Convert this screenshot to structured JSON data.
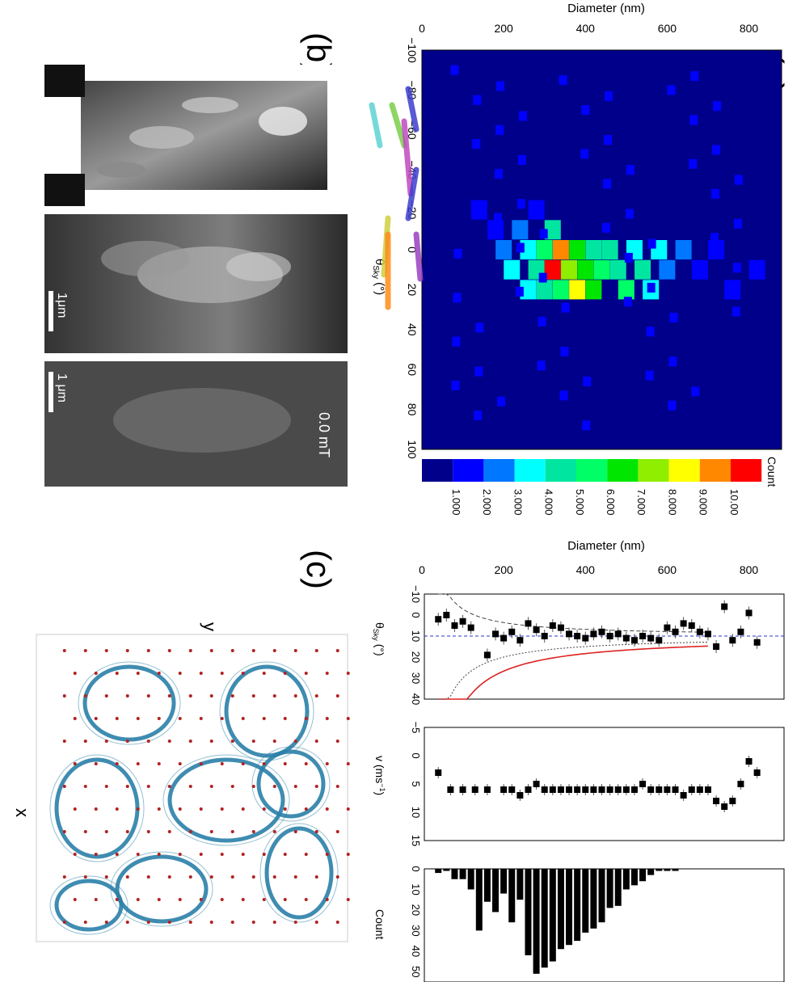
{
  "panels": {
    "a": {
      "label": "(a)"
    },
    "b": {
      "label": "(b)"
    },
    "c": {
      "label": "(c)"
    }
  },
  "heatmap": {
    "xlabel": "Diameter (nm)",
    "ylabel": "θSky (°)",
    "x_ticks": [
      "0",
      "200",
      "400",
      "600",
      "800"
    ],
    "y_ticks": [
      "−100",
      "−80",
      "−60",
      "−40",
      "−20",
      "0",
      "20",
      "40",
      "60",
      "80",
      "100"
    ],
    "colorbar": {
      "title": "Count",
      "labels": [
        "1.000",
        "2.000",
        "3.000",
        "4.000",
        "5.000",
        "6.000",
        "7.000",
        "8.000",
        "9.000",
        "10.00"
      ],
      "colors": [
        "#00008b",
        "#0000ff",
        "#0077ff",
        "#00ffff",
        "#00e6a0",
        "#00ff66",
        "#00e600",
        "#90ee00",
        "#ffff00",
        "#ff8800",
        "#ff0000"
      ]
    }
  },
  "micrographs": {
    "scale_label": "1μm",
    "scale_label_3": "1 μm",
    "field_label": "0.0 mT",
    "track_colors": [
      "#5fd3d3",
      "#7ad04a",
      "#3e3ed0",
      "#c04bc0",
      "#3e3ed0",
      "#d0d040",
      "#ff8c1a",
      "#9a40c0"
    ]
  },
  "simulation": {
    "axis_x": "x",
    "axis_y": "y",
    "line_color": "#2a7fa8",
    "dot_color": "#b22222"
  },
  "chart_data": [
    {
      "type": "heatmap",
      "title": "",
      "xlabel": "Diameter (nm)",
      "ylabel": "θSky (°)",
      "xlim": [
        0,
        880
      ],
      "ylim": [
        -100,
        100
      ],
      "cells": [
        {
          "d": 140,
          "t": -20,
          "c": 1
        },
        {
          "d": 180,
          "t": -10,
          "c": 1
        },
        {
          "d": 200,
          "t": 0,
          "c": 2
        },
        {
          "d": 220,
          "t": 10,
          "c": 3
        },
        {
          "d": 240,
          "t": -10,
          "c": 2
        },
        {
          "d": 260,
          "t": 0,
          "c": 3
        },
        {
          "d": 260,
          "t": 20,
          "c": 3
        },
        {
          "d": 280,
          "t": -20,
          "c": 1
        },
        {
          "d": 280,
          "t": 10,
          "c": 4
        },
        {
          "d": 300,
          "t": 0,
          "c": 5
        },
        {
          "d": 300,
          "t": 20,
          "c": 4
        },
        {
          "d": 320,
          "t": 10,
          "c": 6
        },
        {
          "d": 320,
          "t": -10,
          "c": 4
        },
        {
          "d": 340,
          "t": 0,
          "c": 9
        },
        {
          "d": 340,
          "t": 20,
          "c": 5
        },
        {
          "d": 360,
          "t": 10,
          "c": 7
        },
        {
          "d": 320,
          "t": 10,
          "c": 10
        },
        {
          "d": 380,
          "t": 0,
          "c": 6
        },
        {
          "d": 380,
          "t": 20,
          "c": 8
        },
        {
          "d": 400,
          "t": 10,
          "c": 6
        },
        {
          "d": 420,
          "t": 0,
          "c": 4
        },
        {
          "d": 420,
          "t": 20,
          "c": 6
        },
        {
          "d": 440,
          "t": 10,
          "c": 5
        },
        {
          "d": 460,
          "t": 0,
          "c": 4
        },
        {
          "d": 480,
          "t": 10,
          "c": 4
        },
        {
          "d": 500,
          "t": 20,
          "c": 5
        },
        {
          "d": 520,
          "t": 0,
          "c": 3
        },
        {
          "d": 540,
          "t": 10,
          "c": 4
        },
        {
          "d": 560,
          "t": 20,
          "c": 3
        },
        {
          "d": 580,
          "t": 0,
          "c": 3
        },
        {
          "d": 600,
          "t": 10,
          "c": 2
        },
        {
          "d": 640,
          "t": 0,
          "c": 2
        },
        {
          "d": 680,
          "t": 10,
          "c": 1
        },
        {
          "d": 720,
          "t": 0,
          "c": 1
        },
        {
          "d": 760,
          "t": 20,
          "c": 1
        },
        {
          "d": 820,
          "t": 10,
          "c": 1
        }
      ]
    },
    {
      "type": "scatter",
      "title": "",
      "xlabel": "Diameter (nm)",
      "ylabel": "θSky (°)",
      "xlim": [
        0,
        880
      ],
      "ylim": [
        -10,
        40
      ],
      "x": [
        40,
        60,
        80,
        100,
        120,
        160,
        180,
        200,
        220,
        240,
        260,
        280,
        300,
        320,
        340,
        360,
        380,
        400,
        420,
        440,
        460,
        480,
        500,
        520,
        540,
        560,
        580,
        600,
        620,
        640,
        660,
        680,
        700,
        720,
        740,
        760,
        780,
        800,
        820
      ],
      "y": [
        2,
        0,
        5,
        3,
        6,
        19,
        9,
        11,
        8,
        12,
        4,
        7,
        10,
        5,
        6,
        9,
        10,
        11,
        9,
        8,
        10,
        9,
        11,
        12,
        10,
        11,
        12,
        6,
        8,
        4,
        5,
        8,
        9,
        15,
        -4,
        12,
        8,
        -1,
        13
      ]
    },
    {
      "type": "scatter",
      "title": "",
      "xlabel": "Diameter (nm)",
      "ylabel": "v (ms⁻¹)",
      "xlim": [
        0,
        880
      ],
      "ylim": [
        -5,
        15
      ],
      "x": [
        40,
        70,
        100,
        130,
        160,
        200,
        220,
        240,
        260,
        280,
        300,
        320,
        340,
        360,
        380,
        400,
        420,
        440,
        460,
        480,
        500,
        520,
        540,
        560,
        580,
        600,
        620,
        640,
        660,
        680,
        700,
        720,
        740,
        760,
        780,
        800,
        820
      ],
      "y": [
        3,
        6,
        6,
        6,
        6,
        6,
        6,
        7,
        6,
        5,
        6,
        6,
        6,
        6,
        6,
        6,
        6,
        6,
        6,
        6,
        6,
        6,
        5,
        6,
        6,
        6,
        6,
        7,
        6,
        6,
        6,
        8,
        9,
        8,
        5,
        1,
        3
      ]
    },
    {
      "type": "bar",
      "title": "",
      "xlabel": "Diameter (nm)",
      "ylabel": "Count",
      "xlim": [
        0,
        880
      ],
      "ylim": [
        0,
        55
      ],
      "categories": [
        40,
        60,
        80,
        100,
        120,
        140,
        160,
        180,
        200,
        220,
        240,
        260,
        280,
        300,
        320,
        340,
        360,
        380,
        400,
        420,
        440,
        460,
        480,
        500,
        520,
        540,
        560,
        580,
        600,
        620,
        640,
        660,
        680,
        700,
        720,
        740,
        760,
        780,
        800,
        820
      ],
      "values": [
        2,
        1,
        5,
        5,
        10,
        30,
        16,
        21,
        12,
        26,
        15,
        42,
        51,
        48,
        45,
        39,
        37,
        35,
        31,
        29,
        26,
        19,
        18,
        10,
        8,
        6,
        3,
        1,
        1,
        1,
        0,
        0,
        0,
        0,
        0,
        0,
        0,
        0,
        0,
        0
      ]
    }
  ]
}
